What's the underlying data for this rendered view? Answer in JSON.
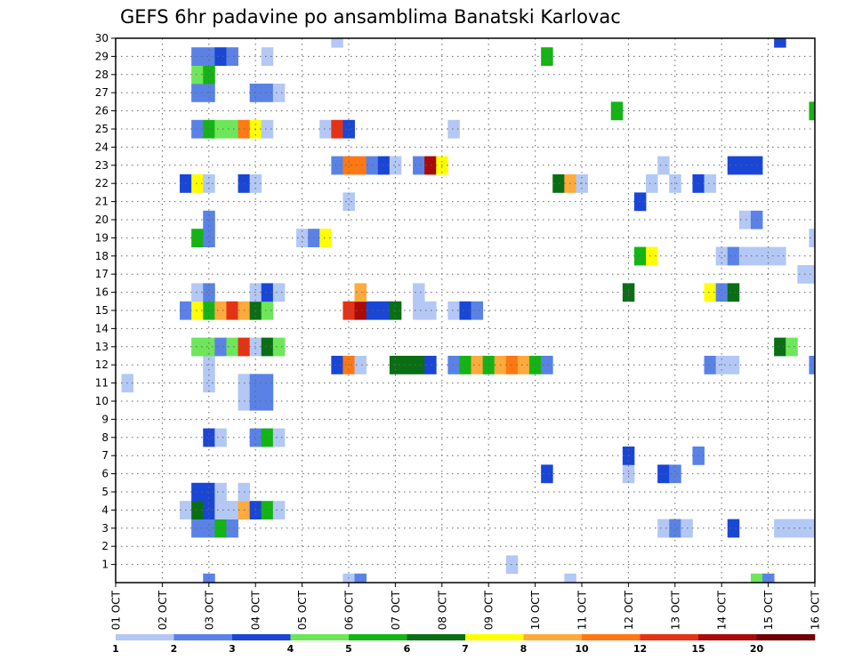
{
  "chart_data": {
    "type": "heatmap",
    "title": "GEFS 6hr padavine po ansamblima Banatski Karlovac",
    "xlabel": "",
    "ylabel": "",
    "x_unit": "6h step (0 = 01 OCT 00z)",
    "xlim": [
      0,
      60
    ],
    "ylim": [
      0,
      30
    ],
    "x_tick_labels": [
      "01 OCT",
      "02 OCT",
      "03 OCT",
      "04 OCT",
      "05 OCT",
      "06 OCT",
      "07 OCT",
      "08 OCT",
      "09 OCT",
      "10 OCT",
      "11 OCT",
      "12 OCT",
      "13 OCT",
      "14 OCT",
      "15 OCT",
      "16 OCT"
    ],
    "y_tick_labels": [
      "1",
      "2",
      "3",
      "4",
      "5",
      "6",
      "7",
      "8",
      "9",
      "10",
      "11",
      "12",
      "13",
      "14",
      "15",
      "16",
      "17",
      "18",
      "19",
      "20",
      "21",
      "22",
      "23",
      "24",
      "25",
      "26",
      "27",
      "28",
      "29",
      "30"
    ],
    "colorbar": {
      "labels": [
        "1",
        "2",
        "3",
        "4",
        "5",
        "6",
        "7",
        "8",
        "10",
        "12",
        "15",
        "20"
      ],
      "colors": [
        "#b4c8f5",
        "#5a82e6",
        "#1a46d6",
        "#6ee65a",
        "#14b414",
        "#0a6e14",
        "#ffff00",
        "#ffaa3c",
        "#ff7814",
        "#e63214",
        "#aa0a0a",
        "#6e0000"
      ]
    },
    "cells": [
      {
        "m": 0,
        "x": 8,
        "c": 2
      },
      {
        "m": 0,
        "x": 20,
        "c": 1
      },
      {
        "m": 0,
        "x": 21,
        "c": 2
      },
      {
        "m": 0,
        "x": 39,
        "c": 1
      },
      {
        "m": 0,
        "x": 55,
        "c": 4
      },
      {
        "m": 0,
        "x": 56,
        "c": 2
      },
      {
        "m": 1,
        "x": 34,
        "c": 1
      },
      {
        "m": 3,
        "x": 7,
        "c": 2
      },
      {
        "m": 3,
        "x": 8,
        "c": 2
      },
      {
        "m": 3,
        "x": 9,
        "c": 5
      },
      {
        "m": 3,
        "x": 10,
        "c": 2
      },
      {
        "m": 3,
        "x": 47,
        "c": 1
      },
      {
        "m": 3,
        "x": 48,
        "c": 2
      },
      {
        "m": 3,
        "x": 49,
        "c": 1
      },
      {
        "m": 3,
        "x": 53,
        "c": 3
      },
      {
        "m": 3,
        "x": 57,
        "c": 1
      },
      {
        "m": 3,
        "x": 58,
        "c": 1
      },
      {
        "m": 3,
        "x": 59,
        "c": 1
      },
      {
        "m": 3,
        "x": 60,
        "c": 1
      },
      {
        "m": 4,
        "x": 6,
        "c": 1
      },
      {
        "m": 4,
        "x": 7,
        "c": 6
      },
      {
        "m": 4,
        "x": 8,
        "c": 3
      },
      {
        "m": 4,
        "x": 9,
        "c": 1
      },
      {
        "m": 4,
        "x": 10,
        "c": 1
      },
      {
        "m": 4,
        "x": 11,
        "c": 8
      },
      {
        "m": 4,
        "x": 12,
        "c": 3
      },
      {
        "m": 4,
        "x": 13,
        "c": 5
      },
      {
        "m": 4,
        "x": 14,
        "c": 1
      },
      {
        "m": 5,
        "x": 7,
        "c": 3
      },
      {
        "m": 5,
        "x": 8,
        "c": 3
      },
      {
        "m": 5,
        "x": 9,
        "c": 1
      },
      {
        "m": 5,
        "x": 11,
        "c": 1
      },
      {
        "m": 6,
        "x": 37,
        "c": 3
      },
      {
        "m": 6,
        "x": 44,
        "c": 1
      },
      {
        "m": 6,
        "x": 47,
        "c": 3
      },
      {
        "m": 6,
        "x": 48,
        "c": 2
      },
      {
        "m": 7,
        "x": 44,
        "c": 3
      },
      {
        "m": 7,
        "x": 50,
        "c": 2
      },
      {
        "m": 8,
        "x": 8,
        "c": 3
      },
      {
        "m": 8,
        "x": 9,
        "c": 1
      },
      {
        "m": 8,
        "x": 12,
        "c": 2
      },
      {
        "m": 8,
        "x": 13,
        "c": 5
      },
      {
        "m": 8,
        "x": 14,
        "c": 1
      },
      {
        "m": 10,
        "x": 11,
        "c": 1
      },
      {
        "m": 10,
        "x": 12,
        "c": 2
      },
      {
        "m": 10,
        "x": 13,
        "c": 2
      },
      {
        "m": 11,
        "x": 1,
        "c": 1
      },
      {
        "m": 11,
        "x": 8,
        "c": 1
      },
      {
        "m": 11,
        "x": 11,
        "c": 1
      },
      {
        "m": 11,
        "x": 12,
        "c": 2
      },
      {
        "m": 11,
        "x": 13,
        "c": 2
      },
      {
        "m": 12,
        "x": 8,
        "c": 1
      },
      {
        "m": 12,
        "x": 19,
        "c": 3
      },
      {
        "m": 12,
        "x": 20,
        "c": 9
      },
      {
        "m": 12,
        "x": 21,
        "c": 1
      },
      {
        "m": 12,
        "x": 24,
        "c": 6
      },
      {
        "m": 12,
        "x": 25,
        "c": 6
      },
      {
        "m": 12,
        "x": 26,
        "c": 6
      },
      {
        "m": 12,
        "x": 27,
        "c": 3
      },
      {
        "m": 12,
        "x": 29,
        "c": 2
      },
      {
        "m": 12,
        "x": 30,
        "c": 5
      },
      {
        "m": 12,
        "x": 31,
        "c": 8
      },
      {
        "m": 12,
        "x": 32,
        "c": 5
      },
      {
        "m": 12,
        "x": 33,
        "c": 8
      },
      {
        "m": 12,
        "x": 34,
        "c": 9
      },
      {
        "m": 12,
        "x": 35,
        "c": 8
      },
      {
        "m": 12,
        "x": 36,
        "c": 5
      },
      {
        "m": 12,
        "x": 37,
        "c": 2
      },
      {
        "m": 12,
        "x": 51,
        "c": 2
      },
      {
        "m": 12,
        "x": 52,
        "c": 1
      },
      {
        "m": 12,
        "x": 53,
        "c": 1
      },
      {
        "m": 12,
        "x": 60,
        "c": 2
      },
      {
        "m": 13,
        "x": 7,
        "c": 4
      },
      {
        "m": 13,
        "x": 8,
        "c": 4
      },
      {
        "m": 13,
        "x": 9,
        "c": 2
      },
      {
        "m": 13,
        "x": 10,
        "c": 4
      },
      {
        "m": 13,
        "x": 11,
        "c": 10
      },
      {
        "m": 13,
        "x": 12,
        "c": 1
      },
      {
        "m": 13,
        "x": 13,
        "c": 6
      },
      {
        "m": 13,
        "x": 14,
        "c": 4
      },
      {
        "m": 13,
        "x": 57,
        "c": 6
      },
      {
        "m": 13,
        "x": 58,
        "c": 4
      },
      {
        "m": 15,
        "x": 6,
        "c": 2
      },
      {
        "m": 15,
        "x": 7,
        "c": 7
      },
      {
        "m": 15,
        "x": 8,
        "c": 5
      },
      {
        "m": 15,
        "x": 9,
        "c": 8
      },
      {
        "m": 15,
        "x": 10,
        "c": 10
      },
      {
        "m": 15,
        "x": 11,
        "c": 8
      },
      {
        "m": 15,
        "x": 12,
        "c": 6
      },
      {
        "m": 15,
        "x": 13,
        "c": 4
      },
      {
        "m": 15,
        "x": 20,
        "c": 10
      },
      {
        "m": 15,
        "x": 21,
        "c": 11
      },
      {
        "m": 15,
        "x": 22,
        "c": 3
      },
      {
        "m": 15,
        "x": 23,
        "c": 3
      },
      {
        "m": 15,
        "x": 24,
        "c": 6
      },
      {
        "m": 15,
        "x": 26,
        "c": 1
      },
      {
        "m": 15,
        "x": 27,
        "c": 1
      },
      {
        "m": 15,
        "x": 29,
        "c": 1
      },
      {
        "m": 15,
        "x": 30,
        "c": 3
      },
      {
        "m": 15,
        "x": 31,
        "c": 2
      },
      {
        "m": 16,
        "x": 7,
        "c": 1
      },
      {
        "m": 16,
        "x": 8,
        "c": 2
      },
      {
        "m": 16,
        "x": 12,
        "c": 1
      },
      {
        "m": 16,
        "x": 13,
        "c": 3
      },
      {
        "m": 16,
        "x": 14,
        "c": 1
      },
      {
        "m": 16,
        "x": 21,
        "c": 8
      },
      {
        "m": 16,
        "x": 26,
        "c": 1
      },
      {
        "m": 16,
        "x": 44,
        "c": 6
      },
      {
        "m": 16,
        "x": 51,
        "c": 7
      },
      {
        "m": 16,
        "x": 52,
        "c": 2
      },
      {
        "m": 16,
        "x": 53,
        "c": 6
      },
      {
        "m": 17,
        "x": 59,
        "c": 1
      },
      {
        "m": 17,
        "x": 60,
        "c": 1
      },
      {
        "m": 18,
        "x": 45,
        "c": 5
      },
      {
        "m": 18,
        "x": 46,
        "c": 7
      },
      {
        "m": 18,
        "x": 52,
        "c": 1
      },
      {
        "m": 18,
        "x": 53,
        "c": 2
      },
      {
        "m": 18,
        "x": 54,
        "c": 1
      },
      {
        "m": 18,
        "x": 55,
        "c": 1
      },
      {
        "m": 18,
        "x": 56,
        "c": 1
      },
      {
        "m": 18,
        "x": 57,
        "c": 1
      },
      {
        "m": 19,
        "x": 7,
        "c": 5
      },
      {
        "m": 19,
        "x": 8,
        "c": 2
      },
      {
        "m": 19,
        "x": 16,
        "c": 1
      },
      {
        "m": 19,
        "x": 17,
        "c": 2
      },
      {
        "m": 19,
        "x": 18,
        "c": 7
      },
      {
        "m": 19,
        "x": 60,
        "c": 1
      },
      {
        "m": 20,
        "x": 8,
        "c": 2
      },
      {
        "m": 20,
        "x": 54,
        "c": 1
      },
      {
        "m": 20,
        "x": 55,
        "c": 2
      },
      {
        "m": 21,
        "x": 20,
        "c": 1
      },
      {
        "m": 21,
        "x": 45,
        "c": 3
      },
      {
        "m": 22,
        "x": 6,
        "c": 3
      },
      {
        "m": 22,
        "x": 7,
        "c": 7
      },
      {
        "m": 22,
        "x": 8,
        "c": 1
      },
      {
        "m": 22,
        "x": 11,
        "c": 3
      },
      {
        "m": 22,
        "x": 12,
        "c": 1
      },
      {
        "m": 22,
        "x": 38,
        "c": 6
      },
      {
        "m": 22,
        "x": 39,
        "c": 8
      },
      {
        "m": 22,
        "x": 40,
        "c": 1
      },
      {
        "m": 22,
        "x": 46,
        "c": 1
      },
      {
        "m": 22,
        "x": 48,
        "c": 1
      },
      {
        "m": 22,
        "x": 50,
        "c": 3
      },
      {
        "m": 22,
        "x": 51,
        "c": 1
      },
      {
        "m": 23,
        "x": 19,
        "c": 2
      },
      {
        "m": 23,
        "x": 20,
        "c": 9
      },
      {
        "m": 23,
        "x": 21,
        "c": 9
      },
      {
        "m": 23,
        "x": 22,
        "c": 2
      },
      {
        "m": 23,
        "x": 23,
        "c": 3
      },
      {
        "m": 23,
        "x": 24,
        "c": 1
      },
      {
        "m": 23,
        "x": 26,
        "c": 2
      },
      {
        "m": 23,
        "x": 27,
        "c": 11
      },
      {
        "m": 23,
        "x": 28,
        "c": 7
      },
      {
        "m": 23,
        "x": 47,
        "c": 1
      },
      {
        "m": 23,
        "x": 53,
        "c": 3
      },
      {
        "m": 23,
        "x": 54,
        "c": 3
      },
      {
        "m": 23,
        "x": 55,
        "c": 3
      },
      {
        "m": 25,
        "x": 7,
        "c": 2
      },
      {
        "m": 25,
        "x": 8,
        "c": 5
      },
      {
        "m": 25,
        "x": 9,
        "c": 4
      },
      {
        "m": 25,
        "x": 10,
        "c": 4
      },
      {
        "m": 25,
        "x": 11,
        "c": 9
      },
      {
        "m": 25,
        "x": 12,
        "c": 7
      },
      {
        "m": 25,
        "x": 13,
        "c": 1
      },
      {
        "m": 25,
        "x": 18,
        "c": 1
      },
      {
        "m": 25,
        "x": 19,
        "c": 10
      },
      {
        "m": 25,
        "x": 20,
        "c": 3
      },
      {
        "m": 25,
        "x": 29,
        "c": 1
      },
      {
        "m": 26,
        "x": 43,
        "c": 5
      },
      {
        "m": 26,
        "x": 60,
        "c": 5
      },
      {
        "m": 27,
        "x": 7,
        "c": 2
      },
      {
        "m": 27,
        "x": 8,
        "c": 2
      },
      {
        "m": 27,
        "x": 12,
        "c": 2
      },
      {
        "m": 27,
        "x": 13,
        "c": 2
      },
      {
        "m": 27,
        "x": 14,
        "c": 1
      },
      {
        "m": 28,
        "x": 7,
        "c": 4
      },
      {
        "m": 28,
        "x": 8,
        "c": 5
      },
      {
        "m": 29,
        "x": 7,
        "c": 2
      },
      {
        "m": 29,
        "x": 8,
        "c": 2
      },
      {
        "m": 29,
        "x": 9,
        "c": 3
      },
      {
        "m": 29,
        "x": 10,
        "c": 2
      },
      {
        "m": 29,
        "x": 13,
        "c": 1
      },
      {
        "m": 29,
        "x": 37,
        "c": 5
      },
      {
        "m": 30,
        "x": 19,
        "c": 1
      },
      {
        "m": 30,
        "x": 57,
        "c": 3
      }
    ]
  }
}
